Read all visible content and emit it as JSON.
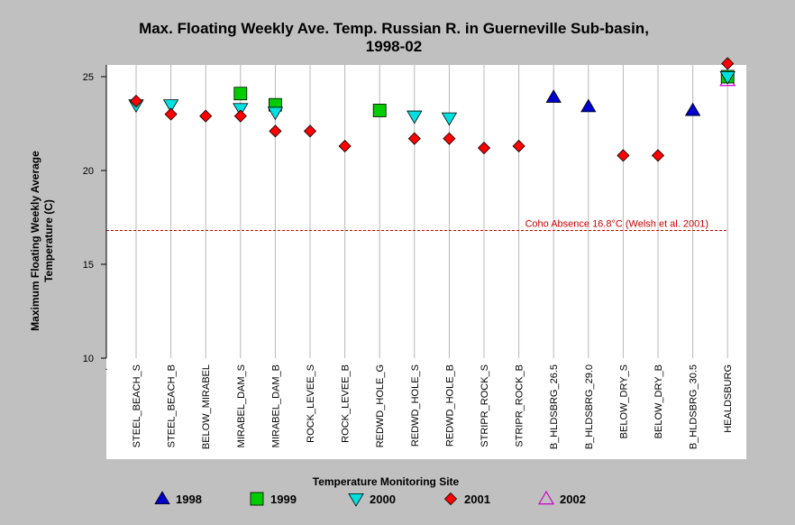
{
  "chart_data": {
    "type": "scatter",
    "title_line1": "Max. Floating Weekly Ave. Temp. Russian R. in Guerneville Sub-basin,",
    "title_line2": "1998-02",
    "xlabel": "Temperature Monitoring Site",
    "ylabel_line1": "Maximum Floating Weekly Average",
    "ylabel_line2": "Temperature (C)",
    "ylim": [
      10,
      25.6
    ],
    "yticks": [
      "10",
      "15",
      "20",
      "25"
    ],
    "x_start_tick": ".",
    "categories": [
      "STEEL_BEACH_S",
      "STEEL_BEACH_B",
      "BELOW_MIRABEL",
      "MIRABEL_DAM_S",
      "MIRABEL_DAM_B",
      "ROCK_LEVEE_S",
      "ROCK_LEVEE_B",
      "REDWD_HOLE_G",
      "REDWD_HOLE_S",
      "REDWD_HOLE_B",
      "STRIPR_ROCK_S",
      "STRIPR_ROCK_B",
      "B_HLDSBRG_26.5",
      "B_HLDSBRG_29.0",
      "BELOW_DRY_S",
      "BELOW_DRY_B",
      "B_HLDSBRG_30.5",
      "HEALDSBURG"
    ],
    "series": [
      {
        "name": "1998",
        "color": "#0000cc",
        "marker": "triangle-up",
        "values": [
          null,
          null,
          null,
          null,
          null,
          null,
          null,
          null,
          null,
          null,
          null,
          null,
          23.9,
          23.4,
          null,
          null,
          23.2,
          null
        ]
      },
      {
        "name": "1999",
        "color": "#00cc00",
        "marker": "square",
        "values": [
          null,
          null,
          null,
          24.1,
          23.5,
          null,
          null,
          23.2,
          null,
          null,
          null,
          null,
          null,
          null,
          null,
          null,
          null,
          25.0
        ]
      },
      {
        "name": "2000",
        "color": "#00e0e0",
        "marker": "triangle-down",
        "values": [
          23.5,
          23.5,
          null,
          23.3,
          23.1,
          null,
          null,
          null,
          22.9,
          22.8,
          null,
          null,
          null,
          null,
          null,
          null,
          null,
          25.0
        ]
      },
      {
        "name": "2001",
        "color": "#ff0000",
        "marker": "diamond",
        "values": [
          23.7,
          23.0,
          22.9,
          22.9,
          22.1,
          22.1,
          21.3,
          null,
          21.7,
          21.7,
          21.2,
          21.3,
          null,
          null,
          20.8,
          20.8,
          null,
          25.7
        ]
      },
      {
        "name": "2002",
        "color": "#cc00cc",
        "marker": "triangle-up-open",
        "values": [
          null,
          null,
          null,
          null,
          null,
          null,
          null,
          null,
          null,
          null,
          null,
          null,
          null,
          null,
          null,
          null,
          null,
          24.8
        ]
      }
    ],
    "reference_line": {
      "value": 16.8,
      "label": "Coho Absence 16.8°C (Welsh et al. 2001)",
      "color": "#cc0000"
    },
    "grid": "vertical",
    "legend_position": "bottom",
    "background": "#c0c0c0",
    "plot_background": "#ffffff"
  }
}
